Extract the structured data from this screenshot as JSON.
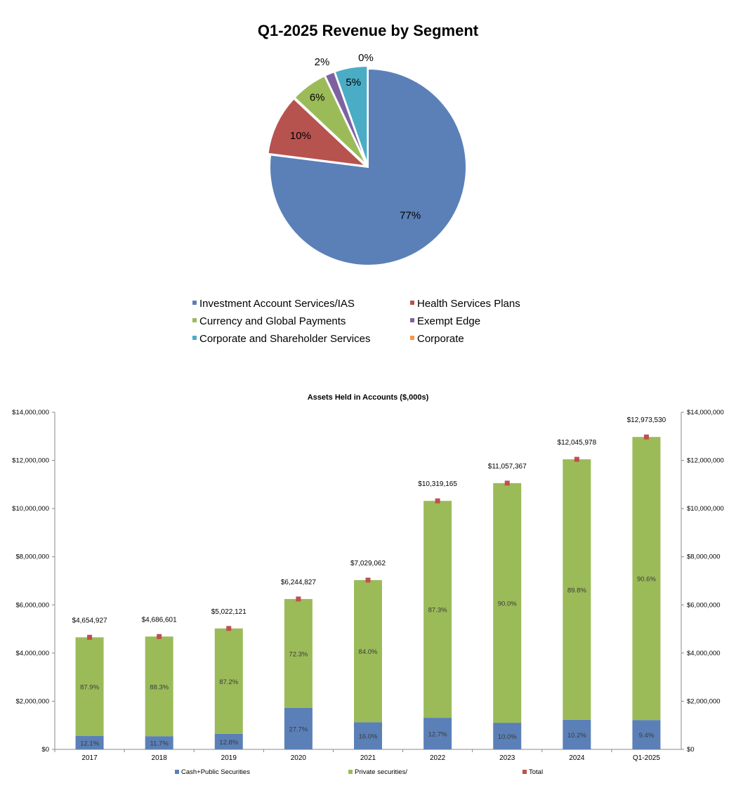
{
  "chart_data": [
    {
      "type": "pie",
      "title": "Q1-2025 Revenue by Segment",
      "slices": [
        {
          "name": "Investment Account Services/IAS",
          "value": 77,
          "label": "77%",
          "color": "#5b80b8"
        },
        {
          "name": "Health Services Plans",
          "value": 10,
          "label": "10%",
          "color": "#b7534f"
        },
        {
          "name": "Currency and Global Payments",
          "value": 6,
          "label": "6%",
          "color": "#9bbb59"
        },
        {
          "name": "Exempt Edge",
          "value": 1.6,
          "label": "2%",
          "color": "#7e62a0"
        },
        {
          "name": "Corporate and Shareholder Services",
          "value": 5.4,
          "label": "5%",
          "color": "#4bacc6"
        },
        {
          "name": "Corporate",
          "value": 0,
          "label": "0%",
          "color": "#f79646"
        }
      ],
      "legend_position": "bottom"
    },
    {
      "type": "bar",
      "stacked": true,
      "title": "Assets Held in Accounts ($,000s)",
      "categories": [
        "2017",
        "2018",
        "2019",
        "2020",
        "2021",
        "2022",
        "2023",
        "2024",
        "Q1-2025"
      ],
      "series": [
        {
          "name": "Cash+Public Securities",
          "color": "#5b80b8",
          "values": [
            563246,
            548332,
            642832,
            1729817,
            1124650,
            1310534,
            1105737,
            1228690,
            1219512
          ],
          "labels": [
            "12.1%",
            "11.7%",
            "12.8%",
            "27.7%",
            "16.0%",
            "12.7%",
            "10.0%",
            "10.2%",
            "9.4%"
          ]
        },
        {
          "name": "Private securities/",
          "color": "#9bbb59",
          "values": [
            4091681,
            4138269,
            4379289,
            4515010,
            5904412,
            9008631,
            9951630,
            10817288,
            11754018
          ],
          "labels": [
            "87.9%",
            "88.3%",
            "87.2%",
            "72.3%",
            "84.0%",
            "87.3%",
            "90.0%",
            "89.8%",
            "90.6%"
          ]
        },
        {
          "name": "Total",
          "color": "#c0504d",
          "marker": "square",
          "values": [
            4654927,
            4686601,
            5022121,
            6244827,
            7029062,
            10319165,
            11057367,
            12045978,
            12973530
          ],
          "labels": [
            "$4,654,927",
            "$4,686,601",
            "$5,022,121",
            "$6,244,827",
            "$7,029,062",
            "$10,319,165",
            "$11,057,367",
            "$12,045,978",
            "$12,973,530"
          ]
        }
      ],
      "yaxis_ticks": [
        "$0",
        "$2,000,000",
        "$4,000,000",
        "$6,000,000",
        "$8,000,000",
        "$10,000,000",
        "$12,000,000",
        "$14,000,000"
      ],
      "ylim": [
        0,
        14000000
      ],
      "secondary_yaxis": true,
      "grid": false,
      "legend_position": "bottom"
    }
  ]
}
